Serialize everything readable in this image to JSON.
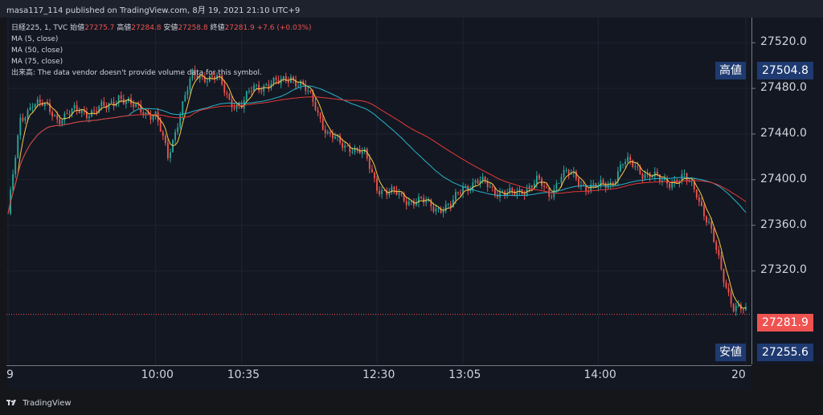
{
  "header": {
    "publisher": "masa117_114 published on TradingView.com, 8月 19, 2021 21:10 UTC+9"
  },
  "legend": {
    "symbol": "日経225, 1, TVC",
    "open_label": "始値",
    "open": "27275.7",
    "high_label": "高値",
    "high": "27284.8",
    "low_label": "安値",
    "low": "27258.8",
    "close_label": "終値",
    "close": "27281.9",
    "change": "+7.6 (+0.03%)",
    "ma5": "MA (5, close)",
    "ma50": "MA (50, close)",
    "ma75": "MA (75, close)",
    "volume_note": "出来高: The data vendor doesn't provide volume data for this symbol."
  },
  "markers": {
    "high_label": "高値",
    "high_value": "27504.8",
    "low_label": "安値",
    "low_value": "27255.6",
    "last_value": "27281.9"
  },
  "footer": {
    "brand": "TradingView"
  },
  "colors": {
    "up": "#26a69a",
    "down": "#ef5350",
    "ma5": "#f7c948",
    "ma50": "#26b4c9",
    "ma75": "#e53935",
    "background": "#131722",
    "label_bg": "#1e3a70"
  },
  "chart_data": {
    "type": "candlestick",
    "title": "日経225, 1, TVC",
    "y_ticks": [
      "27520.0",
      "27480.0",
      "27440.0",
      "27400.0",
      "27360.0",
      "27320.0"
    ],
    "ylim": [
      27238,
      27542
    ],
    "x_ticks": [
      "9",
      "10:00",
      "10:35",
      "12:30",
      "13:05",
      "14:00",
      "20"
    ],
    "grid": true,
    "series_close_approx": [
      {
        "t": "09:00",
        "v": 27370
      },
      {
        "t": "09:05",
        "v": 27450
      },
      {
        "t": "09:10",
        "v": 27470
      },
      {
        "t": "09:20",
        "v": 27455
      },
      {
        "t": "09:30",
        "v": 27460
      },
      {
        "t": "09:40",
        "v": 27462
      },
      {
        "t": "09:45",
        "v": 27475
      },
      {
        "t": "09:50",
        "v": 27463
      },
      {
        "t": "09:55",
        "v": 27462
      },
      {
        "t": "10:00",
        "v": 27455
      },
      {
        "t": "10:05",
        "v": 27420
      },
      {
        "t": "10:10",
        "v": 27460
      },
      {
        "t": "10:15",
        "v": 27490
      },
      {
        "t": "10:20",
        "v": 27492
      },
      {
        "t": "10:25",
        "v": 27488
      },
      {
        "t": "10:30",
        "v": 27470
      },
      {
        "t": "10:35",
        "v": 27465
      },
      {
        "t": "10:40",
        "v": 27480
      },
      {
        "t": "10:45",
        "v": 27485
      },
      {
        "t": "10:50",
        "v": 27483
      },
      {
        "t": "10:55",
        "v": 27492
      },
      {
        "t": "11:00",
        "v": 27480
      },
      {
        "t": "11:05",
        "v": 27465
      },
      {
        "t": "11:10",
        "v": 27440
      },
      {
        "t": "11:15",
        "v": 27430
      },
      {
        "t": "11:20",
        "v": 27430
      },
      {
        "t": "11:25",
        "v": 27420
      },
      {
        "t": "12:30",
        "v": 27395
      },
      {
        "t": "12:35",
        "v": 27388
      },
      {
        "t": "12:40",
        "v": 27385
      },
      {
        "t": "12:45",
        "v": 27382
      },
      {
        "t": "12:50",
        "v": 27378
      },
      {
        "t": "13:00",
        "v": 27375
      },
      {
        "t": "13:05",
        "v": 27395
      },
      {
        "t": "13:10",
        "v": 27397
      },
      {
        "t": "13:15",
        "v": 27395
      },
      {
        "t": "13:20",
        "v": 27390
      },
      {
        "t": "13:25",
        "v": 27385
      },
      {
        "t": "13:30",
        "v": 27393
      },
      {
        "t": "13:35",
        "v": 27398
      },
      {
        "t": "13:40",
        "v": 27387
      },
      {
        "t": "13:45",
        "v": 27405
      },
      {
        "t": "13:50",
        "v": 27402
      },
      {
        "t": "13:55",
        "v": 27395
      },
      {
        "t": "14:00",
        "v": 27392
      },
      {
        "t": "14:05",
        "v": 27398
      },
      {
        "t": "14:10",
        "v": 27414
      },
      {
        "t": "14:15",
        "v": 27412
      },
      {
        "t": "14:20",
        "v": 27405
      },
      {
        "t": "14:25",
        "v": 27398
      },
      {
        "t": "14:30",
        "v": 27400
      },
      {
        "t": "14:35",
        "v": 27400
      },
      {
        "t": "14:40",
        "v": 27390
      },
      {
        "t": "14:45",
        "v": 27360
      },
      {
        "t": "14:50",
        "v": 27320
      },
      {
        "t": "14:55",
        "v": 27290
      },
      {
        "t": "15:00",
        "v": 27282
      }
    ]
  }
}
